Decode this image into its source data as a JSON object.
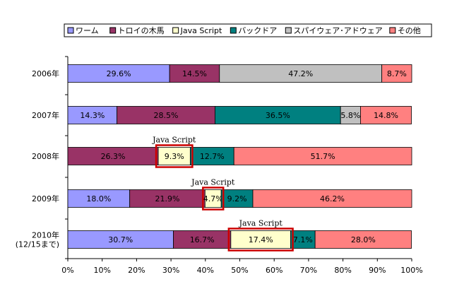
{
  "chart_data": {
    "type": "bar",
    "orientation": "horizontal",
    "stacked": "percent",
    "categories": [
      "2006年",
      "2007年",
      "2008年",
      "2009年",
      "2010年|(12/15まで)"
    ],
    "series": [
      {
        "name": "ワーム",
        "color": "#9999ff",
        "values": [
          29.6,
          14.3,
          0,
          18.0,
          30.7
        ],
        "labels": [
          "29.6%",
          "14.3%",
          "",
          "18.0%",
          "30.7%"
        ]
      },
      {
        "name": "トロイの木馬",
        "color": "#993366",
        "values": [
          14.5,
          28.5,
          26.3,
          21.9,
          16.7
        ],
        "labels": [
          "14.5%",
          "28.5%",
          "26.3%",
          "21.9%",
          "16.7%"
        ]
      },
      {
        "name": "Java Script",
        "color": "#ffffcc",
        "values": [
          0,
          0,
          9.3,
          4.7,
          17.4
        ],
        "labels": [
          "",
          "",
          "9.3%",
          "4.7%",
          "17.4%"
        ]
      },
      {
        "name": "バックドア",
        "color": "#008080",
        "values": [
          0,
          36.5,
          12.7,
          9.2,
          7.1
        ],
        "labels": [
          "",
          "36.5%",
          "12.7%",
          "9.2%",
          "7.1%"
        ]
      },
      {
        "name": "スパイウェア･アドウェア",
        "color": "#c0c0c0",
        "values": [
          47.2,
          5.8,
          0,
          0,
          0
        ],
        "labels": [
          "47.2%",
          "5.8%",
          "",
          "",
          ""
        ]
      },
      {
        "name": "その他",
        "color": "#ff8080",
        "values": [
          8.7,
          14.8,
          51.7,
          46.2,
          28.0
        ],
        "labels": [
          "8.7%",
          "14.8%",
          "51.7%",
          "46.2%",
          "28.0%"
        ]
      }
    ],
    "x_ticks": [
      "0%",
      "10%",
      "20%",
      "30%",
      "40%",
      "50%",
      "60%",
      "70%",
      "80%",
      "90%",
      "100%"
    ],
    "xlim": [
      0,
      100
    ],
    "legend_position": "top",
    "annotations": [
      {
        "category_index": 2,
        "series_index": 2,
        "text": "Java Script",
        "highlight_color": "#cc0000"
      },
      {
        "category_index": 3,
        "series_index": 2,
        "text": "Java Script",
        "highlight_color": "#cc0000"
      },
      {
        "category_index": 4,
        "series_index": 2,
        "text": "Java Script",
        "highlight_color": "#cc0000"
      }
    ],
    "colors": {
      "bar_border": "#000000",
      "axis": "#000000"
    }
  }
}
